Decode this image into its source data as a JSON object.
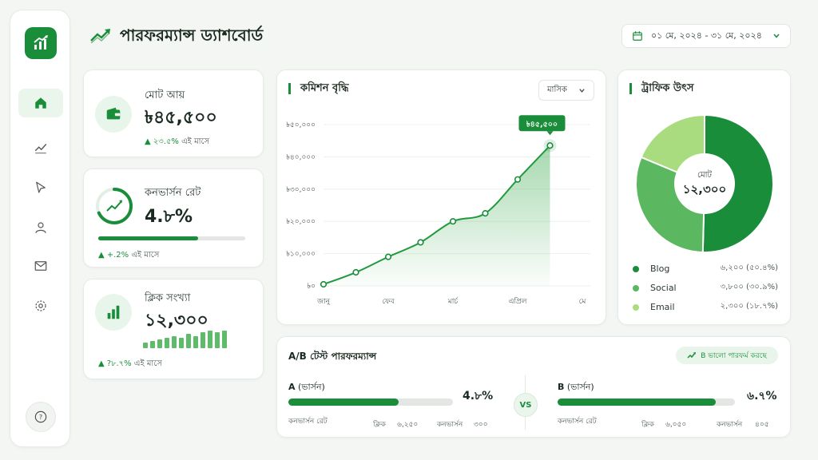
{
  "header": {
    "title": "পারফরম্যান্স ড্যাশবোর্ড",
    "date_range": "০১ মে, ২০২৪ - ৩১ মে, ২০২৪"
  },
  "sidebar": {
    "items": [
      "home",
      "analytics",
      "cursor",
      "users",
      "mail",
      "settings"
    ],
    "active": "home"
  },
  "stats": {
    "revenue": {
      "label": "মোট আয়",
      "value": "৳৪৫,৫০০",
      "change": "২৩.৫%",
      "change_suffix": "এই মাসে"
    },
    "conversion": {
      "label": "কনভার্সন রেট",
      "value": "4.৮%",
      "change": "+.2%",
      "change_suffix": "এই মাসে",
      "progress": 0.68
    },
    "clicks": {
      "label": "ক্লিক সংখ্যা",
      "value": "১২,৩০০",
      "change": "?৮.৭%",
      "change_suffix": "এই মাসে",
      "bars": [
        3,
        4,
        5,
        6,
        7,
        6,
        8,
        7,
        9,
        10,
        9,
        10
      ]
    }
  },
  "commission": {
    "title": "কমিশন বৃদ্ধি",
    "period": "মাসিক",
    "tooltip": "৳৪৫,৫০০",
    "chart_data": {
      "type": "area",
      "x_labels": [
        "জানু",
        "ফেব",
        "মার্চ",
        "এপ্রিল",
        "মে"
      ],
      "y_ticks": [
        "৳০",
        "৳১০,০০০",
        "৳২০,০০০",
        "৳৩০,০০০",
        "৳৪০,০০০",
        "৳৫০,০০০"
      ],
      "ylim": [
        0,
        50000
      ],
      "points": [
        [
          0,
          500
        ],
        [
          0.5,
          4200
        ],
        [
          1,
          9000
        ],
        [
          1.5,
          13500
        ],
        [
          2,
          20000
        ],
        [
          2.5,
          22500
        ],
        [
          3,
          33000
        ],
        [
          3.5,
          43500
        ]
      ]
    }
  },
  "traffic": {
    "title": "ট্রাফিক উৎস",
    "center_label": "মোট",
    "center_value": "১২,৩০০",
    "chart_data": {
      "type": "pie",
      "slices": [
        {
          "name": "Blog",
          "value": 6200,
          "display": "৬,২০০ (৫০.৪%)",
          "color": "#1a8d3a"
        },
        {
          "name": "Social",
          "value": 3800,
          "display": "৩,৮০০ (৩০.৯%)",
          "color": "#5cb860"
        },
        {
          "name": "Email",
          "value": 2300,
          "display": "২,৩০০ (১৮.৭%)",
          "color": "#a9dc7e"
        }
      ]
    }
  },
  "ab": {
    "title": "A/B টেস্ট পারফরম্যান্স",
    "badge": "B ভালো পারফর্ম করছে",
    "vs": "VS",
    "a": {
      "name": "A",
      "suffix": "(ভার্সন)",
      "pct": "4.৮%",
      "progress": 0.67,
      "conv_label": "কনভার্সন রেট",
      "clicks_label": "ক্লিক",
      "clicks": "৬,২৫০",
      "conv_count_label": "কনভার্সন",
      "conv_count": "৩০০"
    },
    "b": {
      "name": "B",
      "suffix": "(ভার্সন)",
      "pct": "৬.৭%",
      "progress": 0.89,
      "conv_label": "কনভার্সন রেট",
      "clicks_label": "ক্লিক",
      "clicks": "৬,০৫০",
      "conv_count_label": "কনভার্সন",
      "conv_count": "৪০৫"
    }
  }
}
